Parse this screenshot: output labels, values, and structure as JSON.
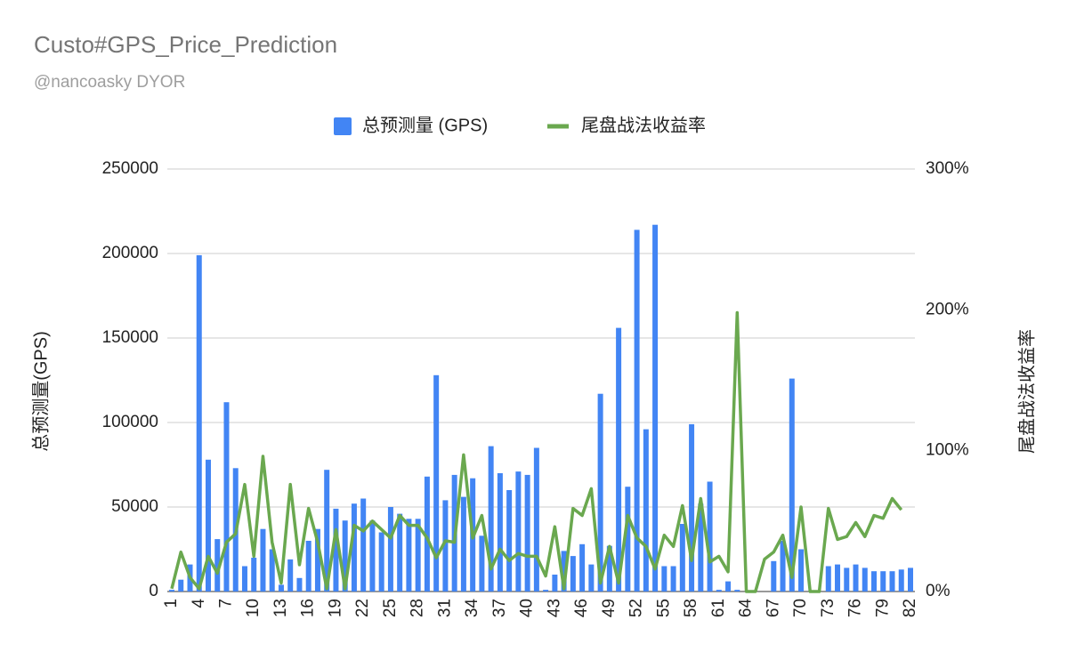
{
  "chart_data": {
    "type": "bar_line",
    "title": "Custo#GPS_Price_Prediction",
    "subtitle": "@nancoasky DYOR",
    "y_label": "总预测量(GPS)",
    "y2_label": "尾盘战法收益率",
    "categories": [
      "1",
      null,
      null,
      "4",
      null,
      null,
      "7",
      null,
      null,
      "10",
      null,
      null,
      "13",
      null,
      null,
      "16",
      null,
      null,
      "19",
      null,
      null,
      "22",
      null,
      null,
      "25",
      null,
      null,
      "28",
      null,
      null,
      "31",
      null,
      null,
      "34",
      null,
      null,
      "37",
      null,
      null,
      "40",
      null,
      null,
      "43",
      null,
      null,
      "46",
      null,
      null,
      "49",
      null,
      null,
      "52",
      null,
      null,
      "55",
      null,
      null,
      "58",
      null,
      null,
      "61",
      null,
      null,
      "64",
      null,
      null,
      "67",
      null,
      null,
      "70",
      null,
      null,
      "73",
      null,
      null,
      "76",
      null,
      null,
      "79",
      null,
      null,
      "82"
    ],
    "series": [
      {
        "name": "总预测量 (GPS)",
        "color": "#4285f4",
        "kind": "bar",
        "values": [
          1000,
          7000,
          16000,
          199000,
          78000,
          31000,
          112000,
          73000,
          15000,
          20000,
          37000,
          25000,
          4000,
          19000,
          8000,
          30000,
          37000,
          72000,
          49000,
          42000,
          52000,
          55000,
          42000,
          35000,
          50000,
          46000,
          43000,
          43000,
          68000,
          128000,
          54000,
          69000,
          56000,
          67000,
          33000,
          86000,
          70000,
          60000,
          71000,
          69000,
          85000,
          1000,
          10000,
          24000,
          21000,
          28000,
          16000,
          117000,
          27000,
          156000,
          62000,
          214000,
          96000,
          217000,
          15000,
          15000,
          40000,
          99000,
          52000,
          65000,
          1000,
          6000,
          1000,
          0,
          0,
          0,
          18000,
          30000,
          126000,
          25000,
          0,
          0,
          15000,
          16000,
          14000,
          16000,
          14000,
          12000,
          12000,
          12000,
          13000,
          14000
        ]
      },
      {
        "name": "尾盘战法收益率",
        "color": "#6aa84f",
        "kind": "line",
        "axis": "y2",
        "values": [
          2,
          28,
          10,
          2,
          25,
          13,
          35,
          41,
          76,
          25,
          96,
          35,
          6,
          76,
          19,
          59,
          35,
          2,
          44,
          2,
          47,
          43,
          50,
          44,
          38,
          54,
          47,
          47,
          38,
          24,
          36,
          35,
          97,
          38,
          54,
          16,
          30,
          22,
          27,
          25,
          25,
          11,
          46,
          2,
          59,
          54,
          73,
          6,
          32,
          6,
          54,
          38,
          32,
          16,
          40,
          32,
          61,
          22,
          66,
          21,
          25,
          14,
          198,
          0,
          0,
          23,
          28,
          40,
          10,
          60,
          0,
          0,
          59,
          37,
          39,
          49,
          39,
          54,
          52,
          66,
          58,
          null
        ]
      }
    ],
    "ylim": [
      0,
      250000
    ],
    "yticks": [
      0,
      50000,
      100000,
      150000,
      200000,
      250000
    ],
    "y2lim": [
      0,
      300
    ],
    "y2ticks": [
      {
        "value": 0,
        "label": "0%"
      },
      {
        "value": 100,
        "label": "100%"
      },
      {
        "value": 200,
        "label": "200%"
      },
      {
        "value": 300,
        "label": "300%"
      }
    ],
    "grid": true,
    "legend": "top"
  }
}
